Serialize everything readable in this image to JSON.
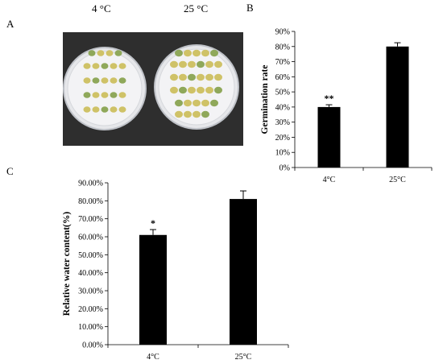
{
  "panels": {
    "a": {
      "letter": "A",
      "labels": [
        "4 °C",
        "25 °C"
      ]
    },
    "b": {
      "letter": "B"
    },
    "c": {
      "letter": "C"
    }
  },
  "photo": {
    "background": "#2e2e2e",
    "dish_color": "#e6e7ea",
    "seed_color": "#cfc267",
    "seed_green": "#8fa85a"
  },
  "chart_data": [
    {
      "type": "bar",
      "categories": [
        "4°C",
        "25°C"
      ],
      "values": [
        40,
        80
      ],
      "errors": [
        1.5,
        2.5
      ],
      "significance": [
        "**",
        ""
      ],
      "ylabel": "Germination rate",
      "ylim": [
        0,
        90
      ],
      "yticks": [
        0,
        10,
        20,
        30,
        40,
        50,
        60,
        70,
        80,
        90
      ],
      "yticklabels": [
        "0%",
        "10%",
        "20%",
        "30%",
        "40%",
        "50%",
        "60%",
        "70%",
        "80%",
        "90%"
      ],
      "bar_color": "#000000",
      "grid": false,
      "legend": "none"
    },
    {
      "type": "bar",
      "categories": [
        "4°C",
        "25°C"
      ],
      "values": [
        61,
        81
      ],
      "errors": [
        3,
        4.5
      ],
      "significance": [
        "*",
        ""
      ],
      "ylabel": "Relative water content(%)",
      "ylim": [
        0,
        90
      ],
      "yticks": [
        0,
        10,
        20,
        30,
        40,
        50,
        60,
        70,
        80,
        90
      ],
      "yticklabels": [
        "0.00%",
        "10.00%",
        "20.00%",
        "30.00%",
        "40.00%",
        "50.00%",
        "60.00%",
        "70.00%",
        "80.00%",
        "90.00%"
      ],
      "bar_color": "#000000",
      "grid": false,
      "legend": "none"
    }
  ]
}
